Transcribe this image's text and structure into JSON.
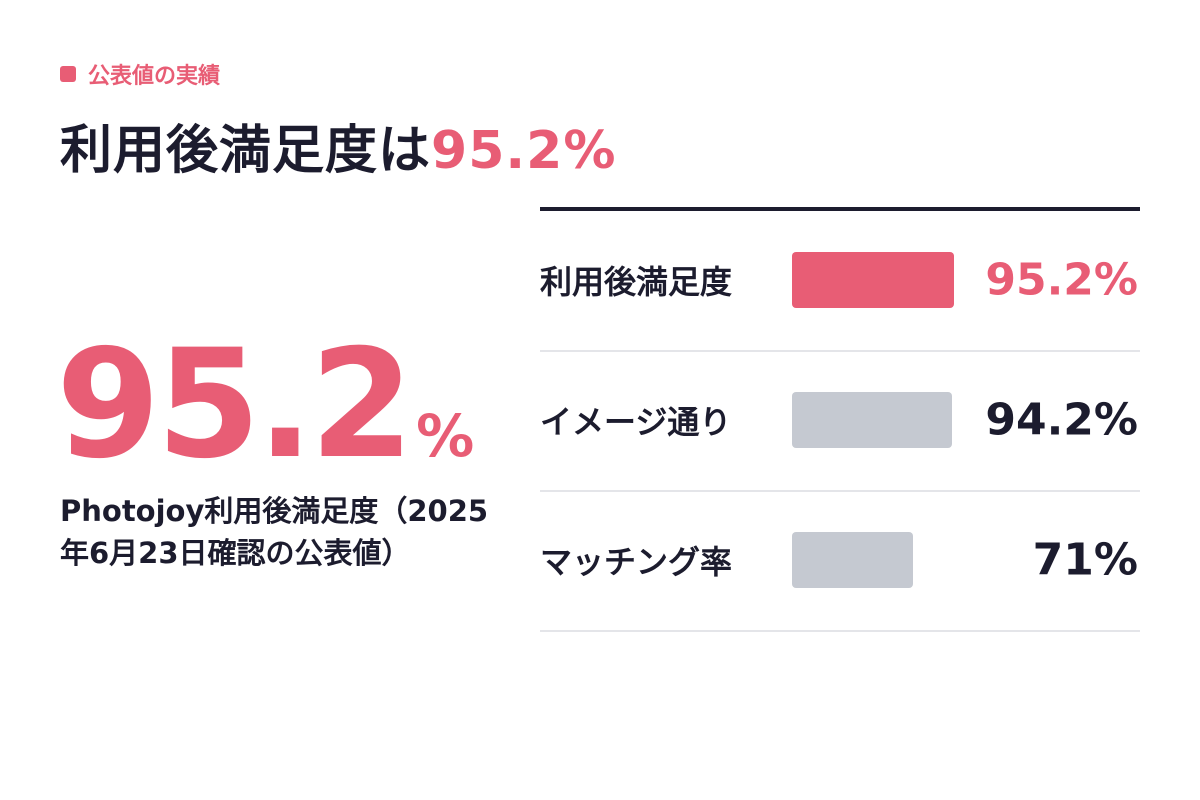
{
  "header": {
    "kicker": "公表値の実績",
    "title": "利用後満足度は",
    "title_highlight": "95.2%"
  },
  "hero": {
    "value": 95.2,
    "unit": "%",
    "caption": "Photojoy利用後満足度（2025年6月23日確認の公表値）"
  },
  "chart_data": {
    "type": "bar",
    "orientation": "horizontal",
    "categories": [
      "利用後満足度",
      "イメージ通り",
      "マッチング率"
    ],
    "values": [
      95.2,
      94.2,
      71
    ],
    "value_labels": [
      "95.2%",
      "94.2%",
      "71%"
    ],
    "colors": [
      "#e85d75",
      "#c5c9d1",
      "#c5c9d1"
    ],
    "label_colors": [
      "#e85d75",
      "#1c1c2e",
      "#1c1c2e"
    ]
  }
}
